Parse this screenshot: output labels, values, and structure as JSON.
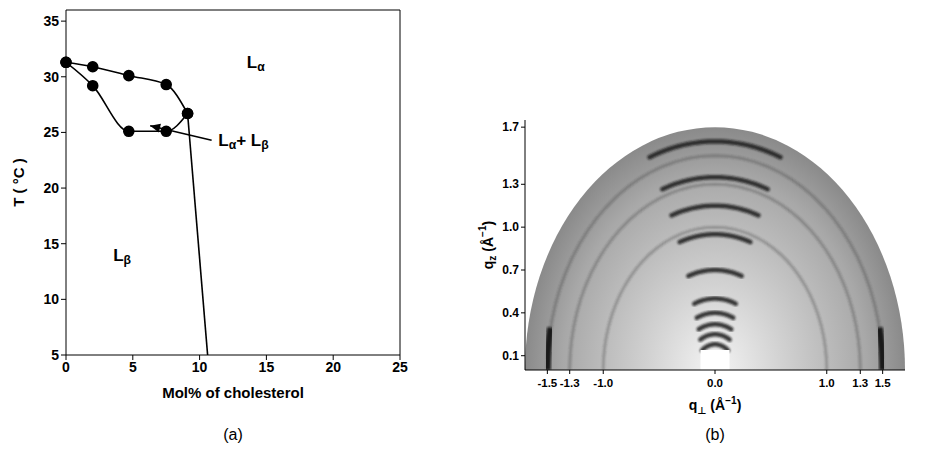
{
  "chart_data": [
    {
      "type": "line",
      "caption": "(a)",
      "xlabel": "Mol% of cholesterol",
      "ylabel": "T ( °C )",
      "xlim": [
        0,
        25
      ],
      "xticks": [
        0,
        5,
        10,
        15,
        20,
        25
      ],
      "ylim": [
        5,
        36
      ],
      "yticks": [
        5,
        10,
        15,
        20,
        25,
        30,
        35
      ],
      "grid": false,
      "series": [
        {
          "x": [
            0,
            2,
            4.7,
            7.5,
            9.1
          ],
          "values": [
            31.3,
            30.9,
            30.1,
            29.3,
            26.7
          ],
          "color": "#000000",
          "marker": "circle",
          "line_style": "curved"
        },
        {
          "x": [
            0,
            2,
            4.7,
            7.5,
            9.1
          ],
          "values": [
            31.3,
            29.2,
            25.1,
            25.1,
            26.7
          ],
          "color": "#000000",
          "marker": "circle",
          "line_style": "curved"
        },
        {
          "x": [
            9.1,
            10.6
          ],
          "values": [
            26.7,
            5
          ],
          "color": "#000000",
          "marker": "none",
          "line_style": "straight"
        }
      ],
      "annotations": [
        {
          "text": "Lα",
          "x": 14.2,
          "y": 31.3
        },
        {
          "text": "Lα+ Lβ",
          "x": 11.4,
          "y": 24.3,
          "arrow_to": [
            6.3,
            25.6
          ]
        },
        {
          "text": "Lβ",
          "x": 4.2,
          "y": 14
        }
      ]
    },
    {
      "type": "image",
      "caption": "(b)",
      "xlabel": "q⊥ (Å−1)",
      "ylabel": "qz (Å−1)",
      "xlim": [
        -1.7,
        1.7
      ],
      "xticks": [
        -1.5,
        -1.3,
        {
          "value": -1,
          "label": "-1.0"
        },
        {
          "value": 0,
          "label": "0.0"
        },
        {
          "value": 1,
          "label": "1.0"
        },
        1.3,
        1.5
      ],
      "ylim": [
        0,
        1.75
      ],
      "yticks": [
        0.1,
        0.4,
        0.7,
        {
          "value": 1,
          "label": "1.0"
        },
        1.3,
        1.7
      ],
      "q_max": 1.7,
      "reflections_qz": [
        0.18,
        0.25,
        0.32,
        0.4,
        0.5,
        0.7,
        0.95,
        1.15,
        1.35,
        1.6
      ],
      "rings_q": [
        1.0,
        1.3,
        1.5
      ],
      "beam_stop": {
        "q_perp": [
          -0.13,
          0.13
        ],
        "q_z": [
          0,
          0.14
        ]
      }
    }
  ]
}
